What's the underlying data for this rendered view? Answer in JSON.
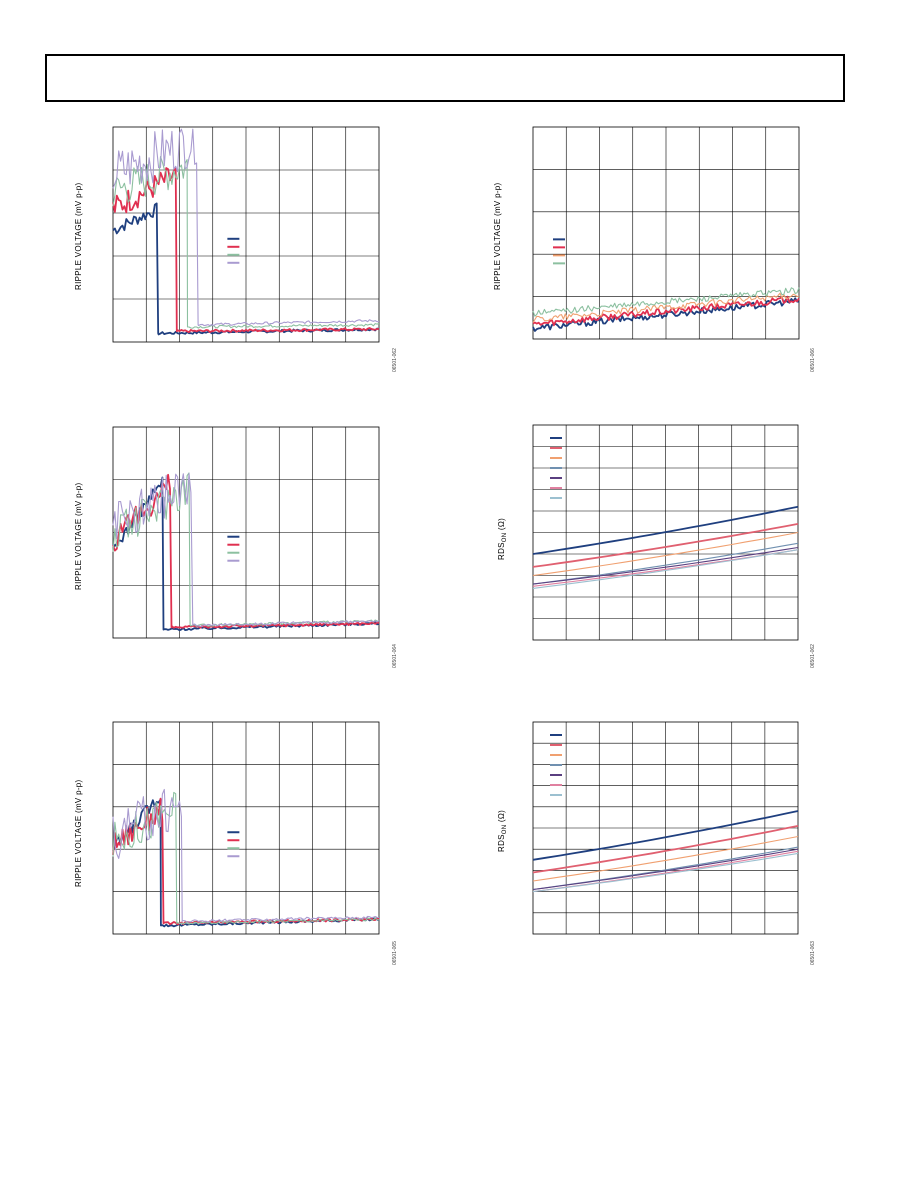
{
  "page": {
    "header": ""
  },
  "chart_data": [
    {
      "type": "line",
      "title": "",
      "ylabel": "RIPPLE VOLTAGE (mV p-p)",
      "figure_code": "06501-062",
      "grid": true,
      "legend": "center-right",
      "series": [
        {
          "color": "#1f3f7f",
          "shape": "drop",
          "drop_at": 0.17,
          "start": 0.52,
          "peak": 0.62,
          "low": 0.04,
          "tail": 0.06
        },
        {
          "color": "#e03050",
          "shape": "drop",
          "drop_at": 0.24,
          "start": 0.62,
          "peak": 0.78,
          "low": 0.05,
          "tail": 0.06
        },
        {
          "color": "#8cc0a0",
          "shape": "drop",
          "drop_at": 0.28,
          "start": 0.7,
          "peak": 0.82,
          "low": 0.07,
          "tail": 0.08
        },
        {
          "color": "#a99bd0",
          "shape": "drop",
          "drop_at": 0.32,
          "start": 0.78,
          "peak": 0.95,
          "low": 0.08,
          "tail": 0.1
        }
      ]
    },
    {
      "type": "line",
      "title": "",
      "ylabel": "RIPPLE VOLTAGE (mV p-p)",
      "figure_code": "06501-066",
      "grid": true,
      "legend": "center-left",
      "series": [
        {
          "color": "#1f3f7f",
          "shape": "ramp",
          "start": 0.05,
          "end": 0.18
        },
        {
          "color": "#e03050",
          "shape": "ramp",
          "start": 0.07,
          "end": 0.19
        },
        {
          "color": "#f0a070",
          "shape": "ramp",
          "start": 0.09,
          "end": 0.21
        },
        {
          "color": "#8cc0a0",
          "shape": "ramp",
          "start": 0.12,
          "end": 0.23
        }
      ]
    },
    {
      "type": "line",
      "title": "",
      "ylabel": "RIPPLE VOLTAGE (mV p-p)",
      "figure_code": "06501-064",
      "grid": true,
      "legend": "center-right",
      "series": [
        {
          "color": "#1f3f7f",
          "shape": "drop",
          "drop_at": 0.19,
          "start": 0.42,
          "peak": 0.75,
          "low": 0.04,
          "tail": 0.07
        },
        {
          "color": "#e03050",
          "shape": "drop",
          "drop_at": 0.22,
          "start": 0.45,
          "peak": 0.74,
          "low": 0.05,
          "tail": 0.07
        },
        {
          "color": "#8cc0a0",
          "shape": "drop",
          "drop_at": 0.29,
          "start": 0.48,
          "peak": 0.73,
          "low": 0.06,
          "tail": 0.08
        },
        {
          "color": "#a99bd0",
          "shape": "drop",
          "drop_at": 0.3,
          "start": 0.52,
          "peak": 0.75,
          "low": 0.06,
          "tail": 0.08
        }
      ]
    },
    {
      "type": "line",
      "title": "",
      "ylabel": "RDS",
      "ylabel_sub": "ON",
      "ylabel_tail": " (Ω)",
      "figure_code": "06501-062",
      "grid": true,
      "legend": "top-left",
      "series": [
        {
          "color": "#1f3f7f",
          "shape": "line",
          "start": 0.4,
          "end": 0.62
        },
        {
          "color": "#e06070",
          "shape": "line",
          "start": 0.34,
          "end": 0.54
        },
        {
          "color": "#f0a070",
          "shape": "line",
          "start": 0.3,
          "end": 0.5
        },
        {
          "color": "#7090b0",
          "shape": "line",
          "start": 0.26,
          "end": 0.45
        },
        {
          "color": "#5a3f80",
          "shape": "line",
          "start": 0.26,
          "end": 0.43
        },
        {
          "color": "#e080a0",
          "shape": "line",
          "start": 0.25,
          "end": 0.42
        },
        {
          "color": "#9cc0d0",
          "shape": "line",
          "start": 0.24,
          "end": 0.42
        }
      ]
    },
    {
      "type": "line",
      "title": "",
      "ylabel": "RIPPLE VOLTAGE (mV p-p)",
      "figure_code": "06501-065",
      "grid": true,
      "legend": "center-right",
      "series": [
        {
          "color": "#1f3f7f",
          "shape": "drop",
          "drop_at": 0.18,
          "start": 0.4,
          "peak": 0.66,
          "low": 0.04,
          "tail": 0.07
        },
        {
          "color": "#e03050",
          "shape": "drop",
          "drop_at": 0.19,
          "start": 0.42,
          "peak": 0.6,
          "low": 0.05,
          "tail": 0.07
        },
        {
          "color": "#8cc0a0",
          "shape": "drop",
          "drop_at": 0.24,
          "start": 0.44,
          "peak": 0.6,
          "low": 0.05,
          "tail": 0.07
        },
        {
          "color": "#a99bd0",
          "shape": "drop",
          "drop_at": 0.26,
          "start": 0.46,
          "peak": 0.62,
          "low": 0.06,
          "tail": 0.08
        }
      ]
    },
    {
      "type": "line",
      "title": "",
      "ylabel": "RDS",
      "ylabel_sub": "ON",
      "ylabel_tail": " (Ω)",
      "figure_code": "06501-063",
      "grid": true,
      "legend": "top-left",
      "series": [
        {
          "color": "#1f3f7f",
          "shape": "line",
          "start": 0.35,
          "end": 0.58
        },
        {
          "color": "#e06070",
          "shape": "line",
          "start": 0.29,
          "end": 0.51
        },
        {
          "color": "#f0a070",
          "shape": "line",
          "start": 0.25,
          "end": 0.46
        },
        {
          "color": "#7090b0",
          "shape": "line",
          "start": 0.21,
          "end": 0.41
        },
        {
          "color": "#5a3f80",
          "shape": "line",
          "start": 0.21,
          "end": 0.4
        },
        {
          "color": "#e080a0",
          "shape": "line",
          "start": 0.2,
          "end": 0.39
        },
        {
          "color": "#9cc0d0",
          "shape": "line",
          "start": 0.2,
          "end": 0.38
        }
      ]
    }
  ]
}
